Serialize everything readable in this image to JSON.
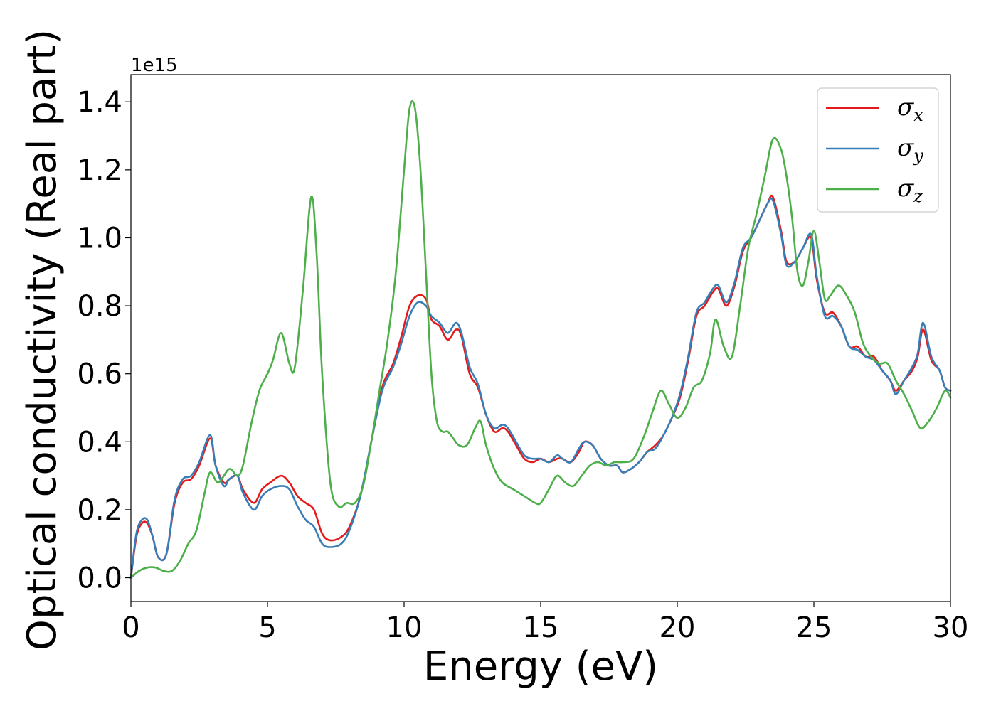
{
  "chart_data": {
    "type": "line",
    "xlabel": "Energy (eV)",
    "ylabel": "Optical conductivity (Real part)",
    "y_offset_label": "1e15",
    "xlim": [
      0,
      30
    ],
    "ylim": [
      -0.07,
      1.48
    ],
    "xticks": [
      0,
      5,
      10,
      15,
      20,
      25,
      30
    ],
    "xtick_labels": [
      "0",
      "5",
      "10",
      "15",
      "20",
      "25",
      "30"
    ],
    "yticks": [
      0.0,
      0.2,
      0.4,
      0.6,
      0.8,
      1.0,
      1.2,
      1.4
    ],
    "ytick_labels": [
      "0.0",
      "0.2",
      "0.4",
      "0.6",
      "0.8",
      "1.0",
      "1.2",
      "1.4"
    ],
    "grid": false,
    "legend_position": "top-right",
    "series": [
      {
        "name": "σx",
        "symbol": "σ",
        "subscript": "x",
        "color": "#e41a1c",
        "x": [
          0,
          0.2,
          0.4,
          0.6,
          0.8,
          1.0,
          1.3,
          1.6,
          1.9,
          2.2,
          2.5,
          2.9,
          3.1,
          3.4,
          3.6,
          3.9,
          4.1,
          4.5,
          4.8,
          5.1,
          5.5,
          5.8,
          6.1,
          6.4,
          6.7,
          7.0,
          7.3,
          7.7,
          8.0,
          8.4,
          8.8,
          9.2,
          9.6,
          9.9,
          10.2,
          10.5,
          10.8,
          11.0,
          11.3,
          11.6,
          11.9,
          12.1,
          12.4,
          12.7,
          13.0,
          13.3,
          13.6,
          13.8,
          14.1,
          14.4,
          14.7,
          15.0,
          15.3,
          15.6,
          15.8,
          16.1,
          16.4,
          16.6,
          16.9,
          17.2,
          17.5,
          17.8,
          18.0,
          18.3,
          18.6,
          18.9,
          19.2,
          19.5,
          19.8,
          20.1,
          20.4,
          20.7,
          21.0,
          21.3,
          21.5,
          21.8,
          22.1,
          22.4,
          22.7,
          23.0,
          23.3,
          23.5,
          23.8,
          24.0,
          24.3,
          24.6,
          24.9,
          25.1,
          25.4,
          25.7,
          26.0,
          26.3,
          26.6,
          26.9,
          27.2,
          27.5,
          27.8,
          28.0,
          28.3,
          28.6,
          28.8,
          29.0,
          29.3,
          29.6,
          29.8,
          30.0
        ],
        "values": [
          0.0,
          0.12,
          0.16,
          0.16,
          0.12,
          0.06,
          0.07,
          0.22,
          0.28,
          0.29,
          0.33,
          0.41,
          0.33,
          0.28,
          0.29,
          0.3,
          0.26,
          0.22,
          0.26,
          0.28,
          0.3,
          0.28,
          0.24,
          0.22,
          0.2,
          0.13,
          0.11,
          0.12,
          0.15,
          0.24,
          0.4,
          0.56,
          0.63,
          0.71,
          0.8,
          0.83,
          0.82,
          0.76,
          0.74,
          0.7,
          0.73,
          0.71,
          0.6,
          0.56,
          0.48,
          0.43,
          0.44,
          0.43,
          0.39,
          0.35,
          0.34,
          0.35,
          0.34,
          0.35,
          0.35,
          0.34,
          0.37,
          0.4,
          0.39,
          0.35,
          0.33,
          0.33,
          0.31,
          0.32,
          0.34,
          0.37,
          0.39,
          0.42,
          0.47,
          0.53,
          0.64,
          0.77,
          0.8,
          0.84,
          0.85,
          0.8,
          0.86,
          0.96,
          1.0,
          1.05,
          1.1,
          1.12,
          1.02,
          0.93,
          0.93,
          0.97,
          1.0,
          0.88,
          0.78,
          0.78,
          0.74,
          0.68,
          0.68,
          0.65,
          0.65,
          0.61,
          0.58,
          0.55,
          0.58,
          0.61,
          0.65,
          0.73,
          0.64,
          0.61,
          0.56,
          0.55
        ]
      },
      {
        "name": "σy",
        "symbol": "σ",
        "subscript": "y",
        "color": "#377eb8",
        "x": [
          0,
          0.2,
          0.4,
          0.6,
          0.8,
          1.0,
          1.3,
          1.6,
          1.9,
          2.2,
          2.5,
          2.9,
          3.1,
          3.4,
          3.6,
          3.9,
          4.1,
          4.5,
          4.8,
          5.1,
          5.5,
          5.8,
          6.1,
          6.4,
          6.7,
          7.0,
          7.3,
          7.7,
          8.0,
          8.4,
          8.8,
          9.2,
          9.6,
          9.9,
          10.2,
          10.5,
          10.8,
          11.0,
          11.3,
          11.6,
          11.9,
          12.1,
          12.4,
          12.7,
          13.0,
          13.3,
          13.6,
          13.8,
          14.1,
          14.4,
          14.7,
          15.0,
          15.3,
          15.6,
          15.8,
          16.1,
          16.4,
          16.6,
          16.9,
          17.2,
          17.5,
          17.8,
          18.0,
          18.3,
          18.6,
          18.9,
          19.2,
          19.5,
          19.8,
          20.1,
          20.4,
          20.7,
          21.0,
          21.3,
          21.5,
          21.8,
          22.1,
          22.4,
          22.7,
          23.0,
          23.3,
          23.5,
          23.8,
          24.0,
          24.3,
          24.6,
          24.9,
          25.1,
          25.4,
          25.7,
          26.0,
          26.3,
          26.6,
          26.9,
          27.2,
          27.5,
          27.8,
          28.0,
          28.3,
          28.6,
          28.8,
          29.0,
          29.3,
          29.6,
          29.8,
          30.0
        ],
        "values": [
          0.0,
          0.13,
          0.17,
          0.17,
          0.12,
          0.06,
          0.07,
          0.23,
          0.29,
          0.3,
          0.34,
          0.42,
          0.33,
          0.27,
          0.29,
          0.3,
          0.25,
          0.2,
          0.24,
          0.26,
          0.27,
          0.26,
          0.21,
          0.17,
          0.15,
          0.1,
          0.09,
          0.1,
          0.14,
          0.24,
          0.4,
          0.55,
          0.62,
          0.69,
          0.77,
          0.81,
          0.8,
          0.77,
          0.75,
          0.72,
          0.75,
          0.72,
          0.62,
          0.57,
          0.48,
          0.44,
          0.45,
          0.44,
          0.4,
          0.36,
          0.35,
          0.35,
          0.34,
          0.36,
          0.35,
          0.34,
          0.38,
          0.4,
          0.39,
          0.35,
          0.33,
          0.33,
          0.31,
          0.32,
          0.34,
          0.37,
          0.38,
          0.42,
          0.47,
          0.54,
          0.65,
          0.78,
          0.81,
          0.85,
          0.86,
          0.81,
          0.87,
          0.97,
          1.0,
          1.05,
          1.1,
          1.11,
          1.01,
          0.92,
          0.93,
          0.97,
          1.01,
          0.89,
          0.77,
          0.77,
          0.74,
          0.68,
          0.67,
          0.65,
          0.64,
          0.61,
          0.58,
          0.54,
          0.58,
          0.62,
          0.66,
          0.75,
          0.65,
          0.61,
          0.56,
          0.55
        ]
      },
      {
        "name": "σz",
        "symbol": "σ",
        "subscript": "z",
        "color": "#4daf4a",
        "x": [
          0,
          0.3,
          0.6,
          0.9,
          1.2,
          1.5,
          1.8,
          2.1,
          2.4,
          2.7,
          2.9,
          3.2,
          3.6,
          3.9,
          4.1,
          4.4,
          4.7,
          5.0,
          5.2,
          5.5,
          5.8,
          6.0,
          6.3,
          6.6,
          6.8,
          7.0,
          7.3,
          7.6,
          7.9,
          8.2,
          8.5,
          8.8,
          9.1,
          9.4,
          9.7,
          10.0,
          10.2,
          10.4,
          10.6,
          10.8,
          11.0,
          11.2,
          11.4,
          11.6,
          11.8,
          12.0,
          12.3,
          12.6,
          12.8,
          13.0,
          13.3,
          13.6,
          14.0,
          14.4,
          14.8,
          15.0,
          15.3,
          15.6,
          15.9,
          16.2,
          16.5,
          16.8,
          17.1,
          17.4,
          17.7,
          18.0,
          18.4,
          18.8,
          19.1,
          19.4,
          19.7,
          20.0,
          20.3,
          20.6,
          20.9,
          21.2,
          21.4,
          21.7,
          22.0,
          22.3,
          22.6,
          22.9,
          23.2,
          23.5,
          23.8,
          24.0,
          24.2,
          24.4,
          24.6,
          24.8,
          25.0,
          25.2,
          25.4,
          25.6,
          25.9,
          26.2,
          26.5,
          26.8,
          27.1,
          27.4,
          27.7,
          28.0,
          28.3,
          28.6,
          28.9,
          29.2,
          29.5,
          29.8,
          30.0
        ],
        "values": [
          0.0,
          0.02,
          0.03,
          0.03,
          0.02,
          0.02,
          0.05,
          0.1,
          0.14,
          0.25,
          0.31,
          0.28,
          0.32,
          0.3,
          0.33,
          0.45,
          0.55,
          0.6,
          0.64,
          0.72,
          0.63,
          0.62,
          0.85,
          1.12,
          0.95,
          0.6,
          0.28,
          0.21,
          0.22,
          0.22,
          0.27,
          0.4,
          0.55,
          0.7,
          0.9,
          1.2,
          1.38,
          1.38,
          1.2,
          0.9,
          0.6,
          0.46,
          0.43,
          0.43,
          0.41,
          0.39,
          0.39,
          0.44,
          0.46,
          0.39,
          0.32,
          0.28,
          0.26,
          0.24,
          0.22,
          0.22,
          0.26,
          0.3,
          0.28,
          0.27,
          0.3,
          0.33,
          0.34,
          0.33,
          0.34,
          0.34,
          0.35,
          0.42,
          0.49,
          0.55,
          0.51,
          0.47,
          0.5,
          0.56,
          0.58,
          0.66,
          0.76,
          0.68,
          0.65,
          0.8,
          0.97,
          1.07,
          1.18,
          1.29,
          1.26,
          1.18,
          1.06,
          0.9,
          0.86,
          0.93,
          1.02,
          0.93,
          0.82,
          0.83,
          0.86,
          0.83,
          0.78,
          0.69,
          0.65,
          0.63,
          0.63,
          0.58,
          0.54,
          0.49,
          0.44,
          0.46,
          0.5,
          0.55,
          0.53
        ]
      }
    ]
  }
}
